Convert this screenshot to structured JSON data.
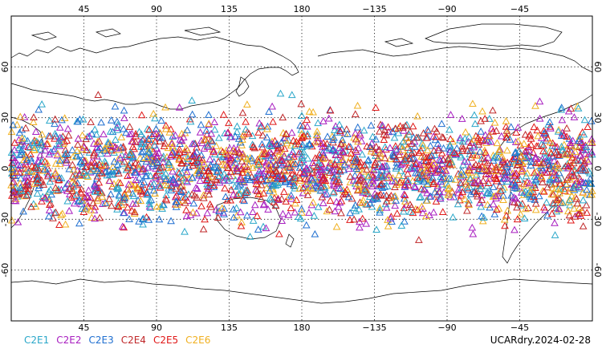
{
  "map": {
    "projection": "cylindrical-equidistant",
    "lon_center": 180,
    "lon_range": [
      0,
      360
    ],
    "lat_range": [
      -90,
      90
    ],
    "grid": "dotted",
    "marker": "triangle-outline",
    "lat_ticks": [
      {
        "lat": 60,
        "label": "60"
      },
      {
        "lat": 30,
        "label": "30"
      },
      {
        "lat": 0,
        "label": "0"
      },
      {
        "lat": -30,
        "label": "-30"
      },
      {
        "lat": -60,
        "label": "-60"
      }
    ],
    "lon_ticks": [
      {
        "lon": 45,
        "label": "45"
      },
      {
        "lon": 90,
        "label": "90"
      },
      {
        "lon": 135,
        "label": "135"
      },
      {
        "lon": 180,
        "label": "180"
      },
      {
        "lon": 225,
        "label": "−135"
      },
      {
        "lon": 270,
        "label": "−90"
      },
      {
        "lon": 315,
        "label": "−45"
      }
    ],
    "observation_lat_extent": [
      -45,
      45
    ]
  },
  "legend": [
    {
      "label": "C2E1",
      "color": "#2aa7c9"
    },
    {
      "label": "C2E2",
      "color": "#a81ec0"
    },
    {
      "label": "C2E3",
      "color": "#1f6fd0"
    },
    {
      "label": "C2E4",
      "color": "#c0282a"
    },
    {
      "label": "C2E5",
      "color": "#e01818"
    },
    {
      "label": "C2E6",
      "color": "#f0b020"
    }
  ],
  "caption": "UCARdry.2024-02-28"
}
